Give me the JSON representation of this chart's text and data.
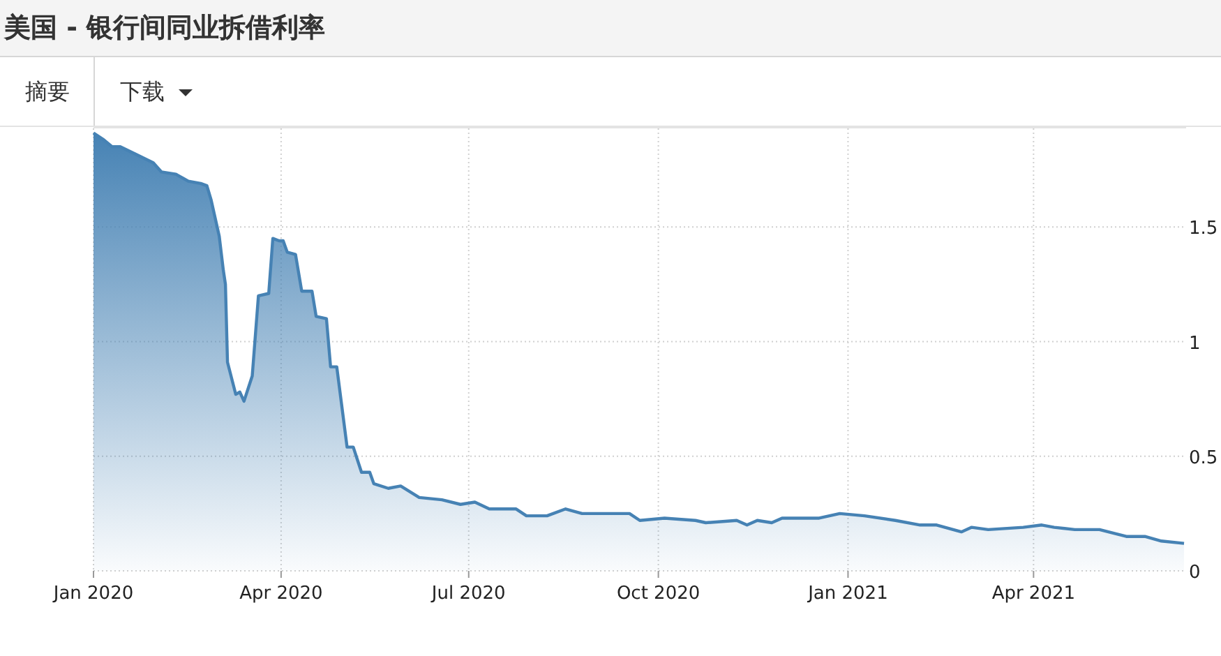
{
  "chart_data": {
    "type": "area",
    "title": "美国 - 银行间同业拆借利率",
    "annotations": [
      "摘要",
      "下载"
    ],
    "x": [
      "2020-01-01",
      "2020-01-06",
      "2020-01-10",
      "2020-01-14",
      "2020-01-21",
      "2020-01-30",
      "2020-02-03",
      "2020-02-10",
      "2020-02-16",
      "2020-02-22",
      "2020-02-25",
      "2020-02-27",
      "2020-03-02",
      "2020-03-04",
      "2020-03-05",
      "2020-03-06",
      "2020-03-10",
      "2020-03-12",
      "2020-03-14",
      "2020-03-18",
      "2020-03-21",
      "2020-03-26",
      "2020-03-28",
      "2020-03-31",
      "2020-04-02",
      "2020-04-04",
      "2020-04-08",
      "2020-04-11",
      "2020-04-16",
      "2020-04-18",
      "2020-04-23",
      "2020-04-25",
      "2020-04-28",
      "2020-05-03",
      "2020-05-06",
      "2020-05-10",
      "2020-05-14",
      "2020-05-16",
      "2020-05-23",
      "2020-05-29",
      "2020-06-07",
      "2020-06-18",
      "2020-06-27",
      "2020-07-04",
      "2020-07-11",
      "2020-07-24",
      "2020-07-29",
      "2020-08-08",
      "2020-08-17",
      "2020-08-25",
      "2020-09-04",
      "2020-09-17",
      "2020-09-22",
      "2020-10-04",
      "2020-10-19",
      "2020-10-24",
      "2020-11-08",
      "2020-11-13",
      "2020-11-18",
      "2020-11-25",
      "2020-11-30",
      "2020-12-18",
      "2020-12-28",
      "2021-01-09",
      "2021-01-24",
      "2021-02-05",
      "2021-02-13",
      "2021-02-25",
      "2021-03-02",
      "2021-03-10",
      "2021-03-27",
      "2021-04-05",
      "2021-04-11",
      "2021-04-21",
      "2021-05-03",
      "2021-05-16",
      "2021-05-25",
      "2021-06-02",
      "2021-06-13"
    ],
    "series": [
      {
        "color": "#4682b4",
        "values": [
          1.91,
          1.88,
          1.85,
          1.85,
          1.82,
          1.78,
          1.74,
          1.73,
          1.7,
          1.69,
          1.68,
          1.62,
          1.46,
          1.31,
          1.25,
          0.91,
          0.77,
          0.78,
          0.74,
          0.85,
          1.2,
          1.21,
          1.45,
          1.44,
          1.44,
          1.39,
          1.38,
          1.22,
          1.22,
          1.11,
          1.1,
          0.89,
          0.89,
          0.54,
          0.54,
          0.43,
          0.43,
          0.38,
          0.36,
          0.37,
          0.32,
          0.31,
          0.29,
          0.3,
          0.27,
          0.27,
          0.24,
          0.24,
          0.27,
          0.25,
          0.25,
          0.25,
          0.22,
          0.23,
          0.22,
          0.21,
          0.22,
          0.2,
          0.22,
          0.21,
          0.23,
          0.23,
          0.25,
          0.24,
          0.22,
          0.2,
          0.2,
          0.17,
          0.19,
          0.18,
          0.19,
          0.2,
          0.19,
          0.18,
          0.18,
          0.15,
          0.15,
          0.13,
          0.12
        ]
      }
    ],
    "xlim": [
      "2020-01-01",
      "2021-06-14"
    ],
    "ylim": [
      0,
      1.93
    ],
    "xticks": [
      {
        "value": "2020-01-01",
        "label": "Jan 2020"
      },
      {
        "value": "2020-04-01",
        "label": "Apr 2020"
      },
      {
        "value": "2020-07-01",
        "label": "Jul 2020"
      },
      {
        "value": "2020-10-01",
        "label": "Oct 2020"
      },
      {
        "value": "2021-01-01",
        "label": "Jan 2021"
      },
      {
        "value": "2021-04-01",
        "label": "Apr 2021"
      }
    ],
    "yticks": [
      0,
      0.5,
      1,
      1.5
    ],
    "grid": true
  }
}
